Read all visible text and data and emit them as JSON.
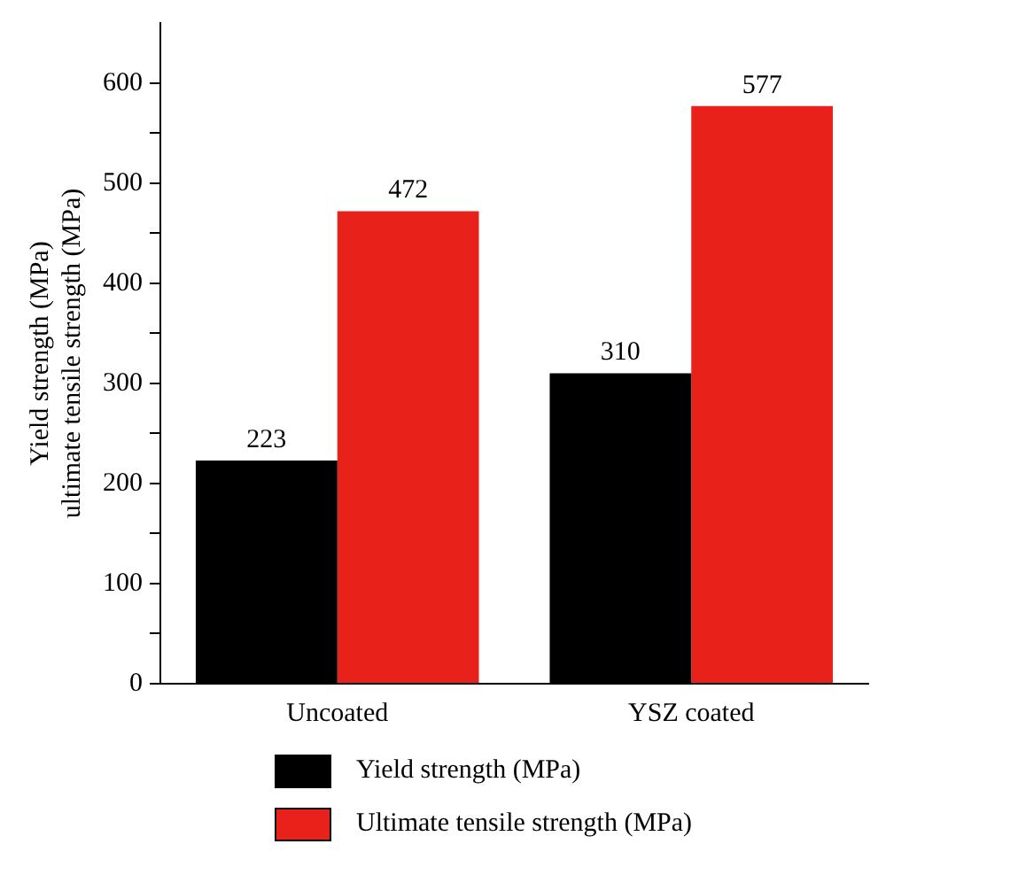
{
  "chart_data": {
    "type": "bar",
    "ylabel": "Yield strength (MPa)\nultimate tensile strength (MPa)",
    "categories": [
      "Uncoated",
      "YSZ coated"
    ],
    "series": [
      {
        "name": "Yield strength (MPa)",
        "color": "#000000",
        "values": [
          223,
          310
        ]
      },
      {
        "name": "Ultimate tensile strength (MPa)",
        "color": "#e8211a",
        "values": [
          472,
          577
        ]
      }
    ],
    "ylim": [
      0,
      660
    ],
    "yticks": [
      0,
      {
        "value": 50,
        "label": null
      },
      100,
      {
        "value": 150,
        "label": null
      },
      200,
      {
        "value": 250,
        "label": null
      },
      300,
      {
        "value": 350,
        "label": null
      },
      400,
      {
        "value": 450,
        "label": null
      },
      500,
      {
        "value": 550,
        "label": null
      },
      600
    ],
    "data_labels": true,
    "grid": false,
    "legend": "bottom"
  }
}
